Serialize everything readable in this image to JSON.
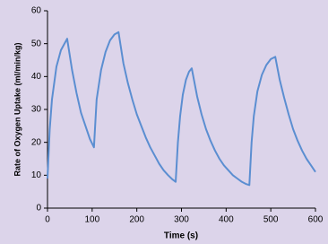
{
  "chart_data": {
    "type": "line",
    "x_label": "Time (s)",
    "y_label": "Rate of Oxygen Uptake (ml/min/kg)",
    "x": [
      0,
      5,
      10,
      20,
      30,
      44,
      55,
      65,
      75,
      85,
      95,
      104,
      110,
      120,
      130,
      140,
      150,
      159,
      170,
      180,
      190,
      200,
      210,
      220,
      230,
      240,
      250,
      260,
      270,
      280,
      287,
      292,
      297,
      303,
      310,
      317,
      323,
      335,
      345,
      355,
      365,
      375,
      385,
      395,
      405,
      415,
      425,
      435,
      445,
      452,
      457,
      462,
      470,
      480,
      490,
      500,
      510,
      520,
      530,
      540,
      550,
      560,
      570,
      580,
      590,
      600
    ],
    "series": [
      {
        "color": "#5b8ed1",
        "values": [
          9,
          24,
          33,
          43,
          48,
          51.5,
          42,
          35,
          29,
          25,
          21,
          18.5,
          33,
          42,
          47.5,
          51,
          52.8,
          53.5,
          44,
          38,
          33,
          28.5,
          25,
          21.5,
          18.5,
          16,
          13.5,
          11.5,
          10,
          8.7,
          8,
          20,
          28,
          34.5,
          39,
          41.5,
          42.5,
          34,
          28.5,
          24,
          20.5,
          17.5,
          15,
          13,
          11.5,
          10,
          9,
          8,
          7.3,
          7,
          20,
          28,
          35.5,
          40.5,
          43.5,
          45.3,
          46,
          39,
          33.5,
          28.5,
          24,
          20.5,
          17.5,
          15,
          13,
          11
        ]
      }
    ],
    "xlim": [
      0,
      600
    ],
    "xticks": [
      0,
      100,
      200,
      300,
      400,
      500,
      600
    ],
    "ylim": [
      0,
      60
    ],
    "yticks": [
      0,
      10,
      20,
      30,
      40,
      50,
      60
    ],
    "grid": false
  }
}
